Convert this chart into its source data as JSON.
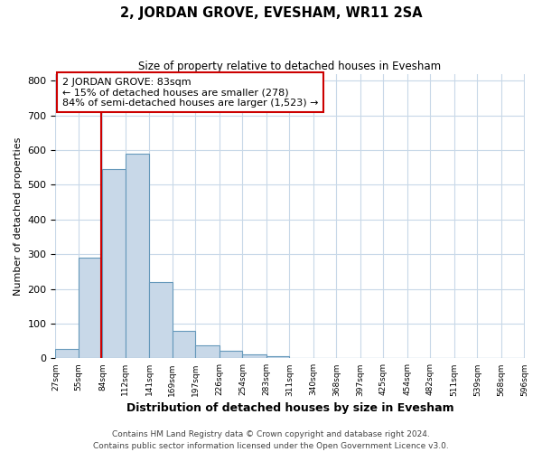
{
  "title": "2, JORDAN GROVE, EVESHAM, WR11 2SA",
  "subtitle": "Size of property relative to detached houses in Evesham",
  "xlabel": "Distribution of detached houses by size in Evesham",
  "ylabel": "Number of detached properties",
  "bin_edges": [
    27,
    55,
    84,
    112,
    141,
    169,
    197,
    226,
    254,
    283,
    311,
    340,
    368,
    397,
    425,
    454,
    482,
    511,
    539,
    568,
    596
  ],
  "bin_counts": [
    28,
    290,
    545,
    590,
    220,
    78,
    37,
    22,
    12,
    5,
    0,
    0,
    0,
    0,
    0,
    0,
    0,
    0,
    0,
    0
  ],
  "bar_color": "#c8d8e8",
  "bar_edge_color": "#6699bb",
  "property_size": 83,
  "vline_color": "#cc0000",
  "annotation_line1": "2 JORDAN GROVE: 83sqm",
  "annotation_line2": "← 15% of detached houses are smaller (278)",
  "annotation_line3": "84% of semi-detached houses are larger (1,523) →",
  "annotation_box_color": "#ffffff",
  "annotation_box_edge_color": "#cc0000",
  "ylim": [
    0,
    820
  ],
  "yticks": [
    0,
    100,
    200,
    300,
    400,
    500,
    600,
    700,
    800
  ],
  "footer_line1": "Contains HM Land Registry data © Crown copyright and database right 2024.",
  "footer_line2": "Contains public sector information licensed under the Open Government Licence v3.0.",
  "background_color": "#ffffff",
  "grid_color": "#c8d8e8",
  "title_fontsize": 10.5,
  "subtitle_fontsize": 8.5,
  "xlabel_fontsize": 9,
  "ylabel_fontsize": 8,
  "annotation_fontsize": 8,
  "footer_fontsize": 6.5
}
